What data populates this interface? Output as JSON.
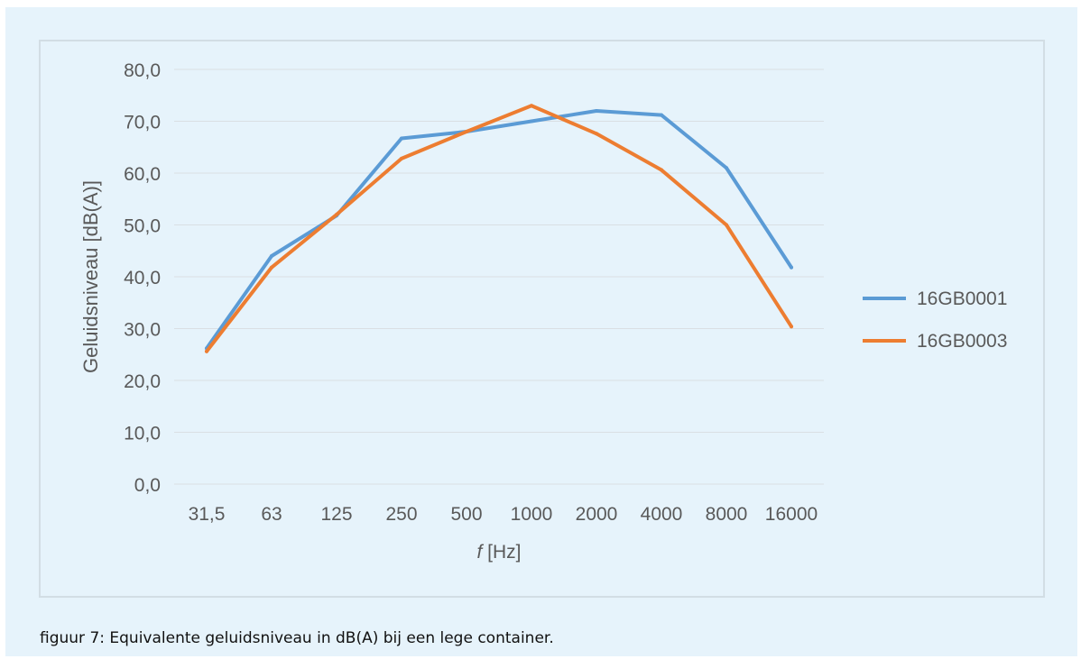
{
  "caption": "figuur 7: Equivalente geluidsniveau in dB(A) bij een lege container.",
  "chart_data": {
    "type": "line",
    "categories": [
      "31,5",
      "63",
      "125",
      "250",
      "500",
      "1000",
      "2000",
      "4000",
      "8000",
      "16000"
    ],
    "series": [
      {
        "name": "16GB0001",
        "color": "#5b9bd5",
        "values": [
          26.2,
          44.0,
          51.8,
          66.7,
          68.0,
          70.0,
          72.0,
          71.2,
          61.0,
          41.8
        ]
      },
      {
        "name": "16GB0003",
        "color": "#ed7d31",
        "values": [
          25.6,
          41.8,
          52.0,
          62.8,
          68.0,
          73.0,
          67.6,
          60.6,
          50.0,
          30.4
        ]
      }
    ],
    "yticks": [
      "0,0",
      "10,0",
      "20,0",
      "30,0",
      "40,0",
      "50,0",
      "60,0",
      "70,0",
      "80,0"
    ],
    "ylim": [
      0,
      80
    ],
    "ylabel": "Geluidsniveau [dB(A)]",
    "xlabel_italic": "f",
    "xlabel_rest": " [Hz]",
    "legend_position": "right",
    "grid": true
  }
}
